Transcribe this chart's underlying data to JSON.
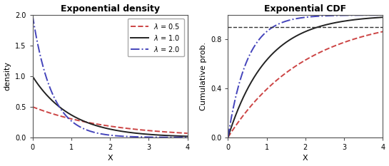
{
  "title_left": "Exponential density",
  "title_right": "Exponential CDF",
  "xlabel": "X",
  "ylabel_left": "density",
  "ylabel_right": "Cumulative prob.",
  "lambdas": [
    0.5,
    1.0,
    2.0
  ],
  "colors": [
    "#cc4444",
    "#222222",
    "#4444bb"
  ],
  "linestyles_density": [
    "--",
    "-",
    "-."
  ],
  "linestyles_cdf": [
    "--",
    "-",
    "-."
  ],
  "xmin": 0,
  "xmax": 4,
  "ymin_density": 0.0,
  "ymax_density": 2.0,
  "ymin_cdf": 0.0,
  "ymax_cdf": 1.0,
  "yticks_density": [
    0.0,
    0.5,
    1.0,
    1.5,
    2.0
  ],
  "ytick_labels_density": [
    "0.0",
    "0.5",
    "1.0",
    "1.5",
    "2.0"
  ],
  "yticks_cdf": [
    0.0,
    0.4,
    0.8
  ],
  "ytick_labels_cdf": [
    "0.0",
    "0.4",
    "0.8"
  ],
  "xticks": [
    0,
    1,
    2,
    3,
    4
  ],
  "hline_cdf_y": 0.9,
  "hline_cdf_color": "#333333",
  "background_color": "#ffffff",
  "plot_bg": "#ffffff",
  "spine_color": "#555555",
  "legend_loc": "upper right",
  "linewidth": 1.4,
  "hline_linewidth": 1.0,
  "title_fontsize": 9,
  "label_fontsize": 8,
  "tick_fontsize": 7,
  "legend_fontsize": 7
}
